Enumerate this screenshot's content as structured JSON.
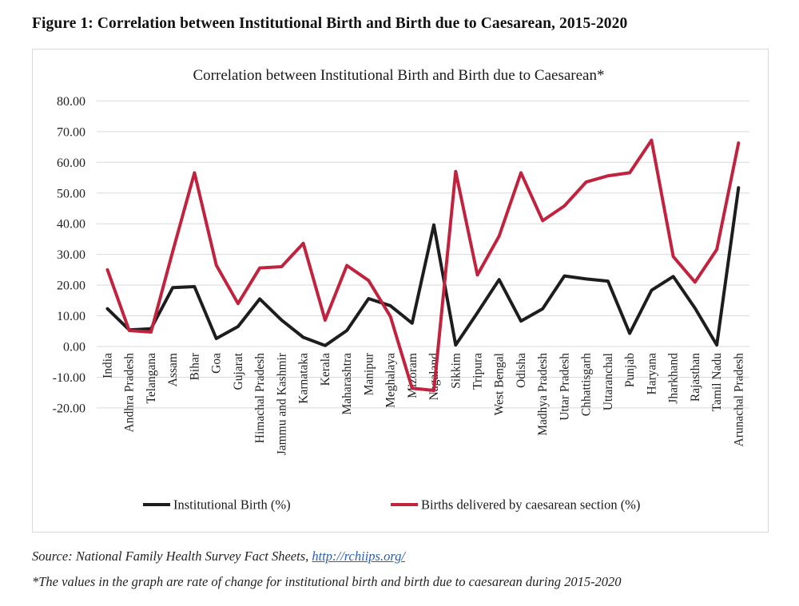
{
  "figure_heading": "Figure 1: Correlation between Institutional Birth and Birth due to Caesarean, 2015-2020",
  "chart_data": {
    "type": "line",
    "title": "Correlation between Institutional Birth and Birth due to Caesarean*",
    "categories": [
      "India",
      "Andhra Pradesh",
      "Telangana",
      "Assam",
      "Bihar",
      "Goa",
      "Gujarat",
      "Himachal Pradesh",
      "Jammu and Kashmir",
      "Karnataka",
      "Kerala",
      "Maharashtra",
      "Manipur",
      "Meghalaya",
      "Mizoram",
      "Nagaland",
      "Sikkim",
      "Tripura",
      "West Bengal",
      "Odisha",
      "Madhya Pradesh",
      "Uttar Pradesh",
      "Chhattisgarh",
      "Uttaranchal",
      "Punjab",
      "Haryana",
      "Jharkhand",
      "Rajasthan",
      "Tamil Nadu",
      "Arunachal Pradesh"
    ],
    "series": [
      {
        "name": "Institutional Birth (%)",
        "color": "#1d1d1d",
        "values": [
          12.3,
          5.4,
          5.8,
          19.2,
          19.5,
          2.6,
          6.5,
          15.5,
          8.6,
          3.0,
          0.3,
          5.2,
          15.6,
          13.3,
          7.6,
          39.6,
          0.5,
          11.0,
          21.8,
          8.3,
          12.3,
          23.0,
          22.0,
          21.3,
          4.3,
          18.3,
          22.8,
          12.5,
          0.5,
          51.7
        ]
      },
      {
        "name": "Births delivered by caesarean section (%)",
        "color": "#c1223e",
        "values": [
          25.0,
          5.2,
          4.7,
          31.0,
          56.6,
          26.5,
          14.0,
          25.6,
          26.0,
          33.6,
          8.6,
          26.4,
          21.5,
          9.8,
          -13.6,
          -14.3,
          57.0,
          23.3,
          36.0,
          56.6,
          41.0,
          45.8,
          53.6,
          55.6,
          56.6,
          67.2,
          29.3,
          21.0,
          31.6,
          66.3
        ]
      }
    ],
    "y_axis": {
      "min": -20,
      "max": 80,
      "step": 10,
      "tick_format": "0.00"
    },
    "xlabel": "",
    "ylabel": "",
    "grid": true,
    "grid_color": "#d9d9d9",
    "legend_position": "bottom"
  },
  "footer": {
    "source_prefix": "Source: National Family Health Survey Fact Sheets, ",
    "source_link": "http://rchiips.org/",
    "link_color": "#2b5fad",
    "footnote": "*The values in the graph are rate of change for institutional birth and birth due to caesarean during 2015-2020"
  }
}
